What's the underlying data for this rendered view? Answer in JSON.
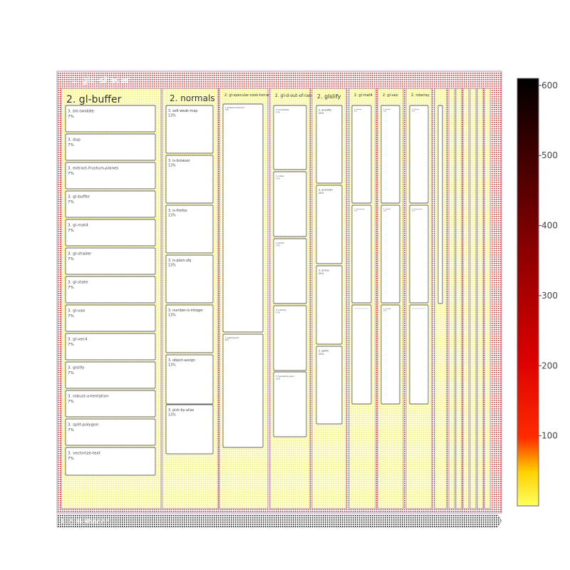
{
  "chart_data": {
    "type": "treemap",
    "root": {
      "label": "1. glsl-shader"
    },
    "pathbar": {
      "label": "1. glsl-shader"
    },
    "colorbar": {
      "colorscale": "hot",
      "ticks": [
        "100",
        "200",
        "300",
        "400",
        "500",
        "600"
      ],
      "range": [
        0,
        610
      ]
    },
    "groups": [
      {
        "label": "2. gl-buffer",
        "children": [
          {
            "label": "3. bit-twiddle",
            "pct": "7%"
          },
          {
            "label": "3. dup",
            "pct": "7%"
          },
          {
            "label": "3. extract-frustum-planes",
            "pct": "7%"
          },
          {
            "label": "3. gl-buffer",
            "pct": "7%"
          },
          {
            "label": "3. gl-mat4",
            "pct": "7%"
          },
          {
            "label": "3. gl-shader",
            "pct": "7%"
          },
          {
            "label": "3. gl-state",
            "pct": "7%"
          },
          {
            "label": "3. gl-vao",
            "pct": "7%"
          },
          {
            "label": "3. gl-vec4",
            "pct": "7%"
          },
          {
            "label": "3. glslify",
            "pct": "7%"
          },
          {
            "label": "3. robust-orientation",
            "pct": "7%"
          },
          {
            "label": "3. split-polygon",
            "pct": "7%"
          },
          {
            "label": "3. vectorize-text",
            "pct": "7%"
          }
        ]
      },
      {
        "label": "2. normals",
        "children": [
          {
            "label": "3. es6-weak-map",
            "pct": "13%"
          },
          {
            "label": "3. is-browser",
            "pct": "13%"
          },
          {
            "label": "3. is-firefox",
            "pct": "13%"
          },
          {
            "label": "3. is-plain-obj",
            "pct": "13%"
          },
          {
            "label": "3. number-is-integer",
            "pct": "13%"
          },
          {
            "label": "3. object-assign",
            "pct": "13%"
          },
          {
            "label": "3. pick-by-alias",
            "pct": "13%"
          }
        ]
      },
      {
        "label": "2. gl-specular-cook-torrance",
        "children": [
          {
            "label": "3. gl-fresnel-schlick-error",
            "pct": "57%"
          },
          {
            "label": "3. weakmap-shim",
            "pct": "29%"
          }
        ]
      },
      {
        "label": "2. gl-d-out-of-range",
        "children": [
          {
            "label": "3. bit-twiddle",
            "pct": "17%"
          },
          {
            "label": "3. cwise",
            "pct": "17%"
          },
          {
            "label": "3. gl-fbo",
            "pct": "17%"
          },
          {
            "label": "3. ndarray",
            "pct": "17%"
          },
          {
            "label": "3. typedarray-pool",
            "pct": "11%"
          }
        ]
      },
      {
        "label": "2. glslify",
        "children": [
          {
            "label": "3. gl-buffer",
            "pct": "20%"
          },
          {
            "label": "3. gl-shader",
            "pct": "20%"
          },
          {
            "label": "3. gl-vao",
            "pct": "20%"
          },
          {
            "label": "3. glslify",
            "pct": "20%"
          }
        ]
      },
      {
        "label": "2. gl-mat4",
        "children": [
          {
            "label": "3. ndarray",
            "pct": "25%"
          },
          {
            "label": "3. ndarray-ops",
            "pct": "25%"
          },
          {
            "label": "",
            "pct": ""
          }
        ]
      },
      {
        "label": "2. gl-vao",
        "children": [
          {
            "label": "3. gl-mat2",
            "pct": "25%"
          },
          {
            "label": "3. gl-mat3",
            "pct": "25%"
          },
          {
            "label": "3. gl-mat4",
            "pct": "25%"
          }
        ]
      },
      {
        "label": "2. ndarray",
        "children": [
          {
            "label": "3. ndarray",
            "pct": "25%"
          },
          {
            "label": "3. ndarray-ops",
            "pct": "25%"
          },
          {
            "label": "",
            "pct": ""
          }
        ]
      },
      {
        "label": "",
        "children": [
          {
            "label": "",
            "pct": ""
          }
        ]
      },
      {
        "label": "",
        "children": []
      },
      {
        "label": "",
        "children": []
      },
      {
        "label": "",
        "children": []
      },
      {
        "label": "",
        "children": []
      },
      {
        "label": "",
        "children": []
      },
      {
        "label": "",
        "children": []
      }
    ]
  }
}
